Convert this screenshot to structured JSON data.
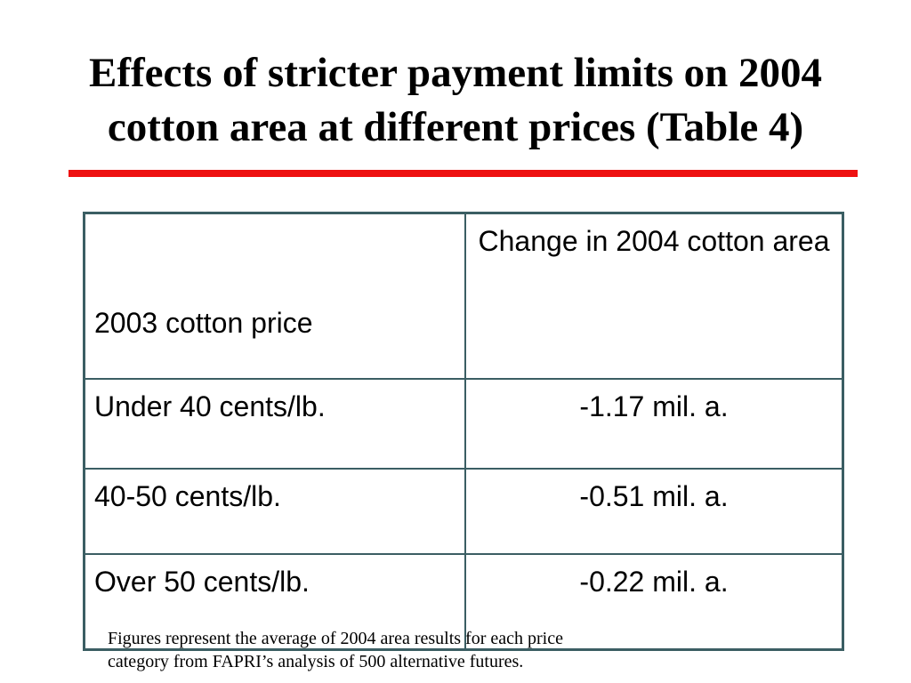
{
  "slide": {
    "title_lines": [
      "Effects of stricter payment limits on 2004",
      "cotton area at different prices (Table 4)"
    ],
    "accent_rule_color": "#ee1111",
    "table": {
      "headers": [
        "2003 cotton price",
        "Change in 2004 cotton area"
      ],
      "rows": [
        {
          "price": "Under 40 cents/lb.",
          "change": "-1.17 mil. a."
        },
        {
          "price": "40-50 cents/lb.",
          "change": "-0.51 mil. a."
        },
        {
          "price": "Over 50 cents/lb.",
          "change": "-0.22 mil. a."
        }
      ],
      "border_color": "#3b5e63"
    },
    "footnote_lines": [
      "Figures represent the average of 2004 area results for each price",
      "category from FAPRI’s analysis of 500 alternative futures."
    ]
  }
}
